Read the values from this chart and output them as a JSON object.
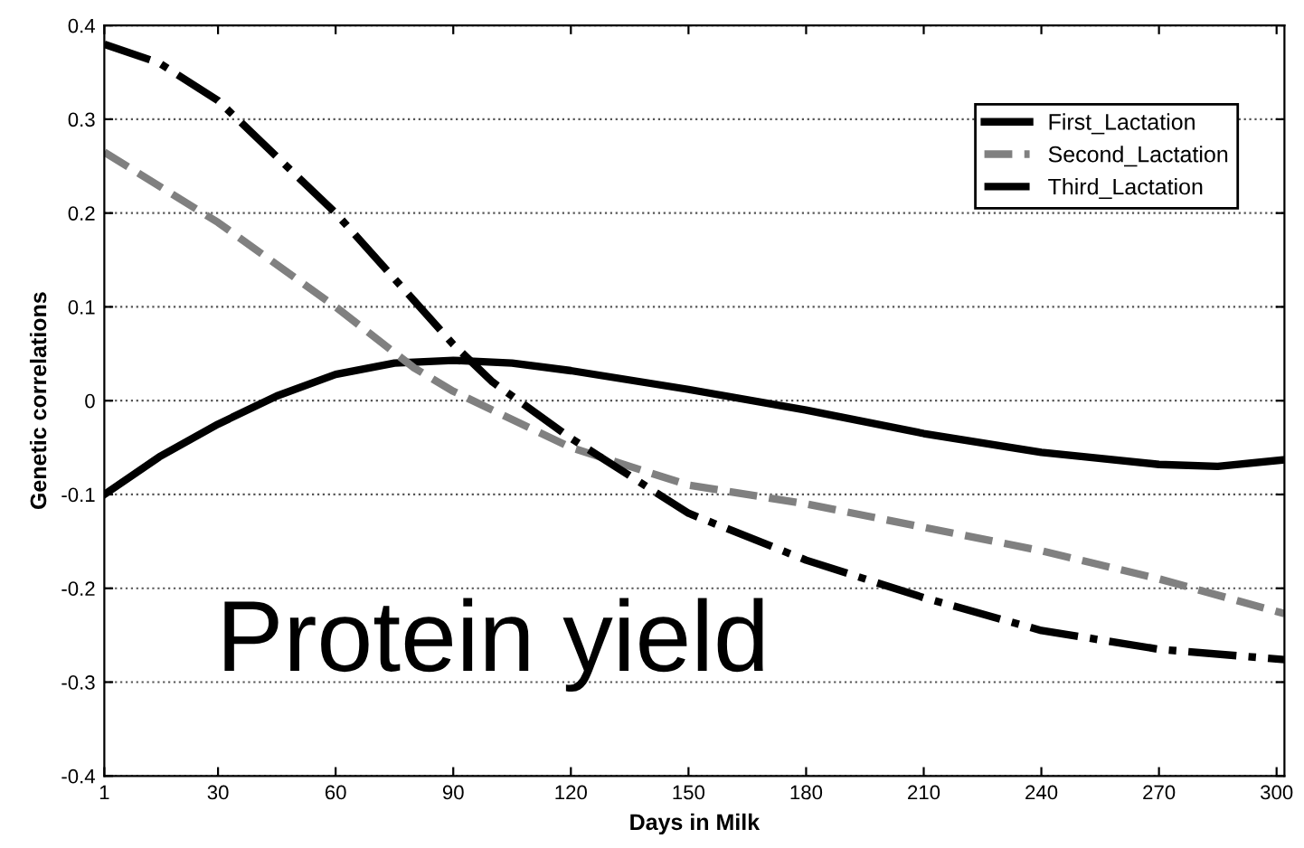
{
  "chart_data": {
    "type": "line",
    "xlabel": "Days in Milk",
    "ylabel": "Genetic correlations",
    "annotations": [
      "Protein yield"
    ],
    "xlim": [
      1,
      302
    ],
    "xticks": [
      1,
      30,
      60,
      90,
      120,
      150,
      180,
      210,
      240,
      270,
      300
    ],
    "ylim": [
      -0.4,
      0.4
    ],
    "yticks": [
      -0.4,
      -0.3,
      -0.2,
      -0.1,
      0,
      0.1,
      0.2,
      0.3,
      0.4
    ],
    "grid": "y",
    "legend": "top right",
    "series": [
      {
        "name": "First_Lactation",
        "color": "#000000",
        "line_style": "solid",
        "x": [
          1,
          15,
          30,
          45,
          60,
          75,
          90,
          105,
          120,
          150,
          180,
          210,
          240,
          270,
          285,
          302
        ],
        "values": [
          -0.1,
          -0.06,
          -0.025,
          0.005,
          0.028,
          0.04,
          0.043,
          0.04,
          0.032,
          0.012,
          -0.01,
          -0.035,
          -0.055,
          -0.068,
          -0.07,
          -0.063
        ]
      },
      {
        "name": "Second_Lactation",
        "color": "#808080",
        "line_style": "dashed",
        "x": [
          1,
          30,
          60,
          80,
          90,
          105,
          120,
          150,
          180,
          210,
          240,
          270,
          302
        ],
        "values": [
          0.265,
          0.19,
          0.1,
          0.035,
          0.01,
          -0.02,
          -0.05,
          -0.09,
          -0.11,
          -0.135,
          -0.16,
          -0.19,
          -0.227
        ]
      },
      {
        "name": "Third_Lactation",
        "color": "#000000",
        "line_style": "dashdot",
        "x": [
          1,
          15,
          30,
          45,
          60,
          75,
          90,
          100,
          120,
          135,
          150,
          180,
          210,
          240,
          270,
          302
        ],
        "values": [
          0.38,
          0.36,
          0.32,
          0.26,
          0.2,
          0.13,
          0.06,
          0.02,
          -0.04,
          -0.08,
          -0.12,
          -0.17,
          -0.21,
          -0.245,
          -0.265,
          -0.276
        ]
      }
    ]
  }
}
